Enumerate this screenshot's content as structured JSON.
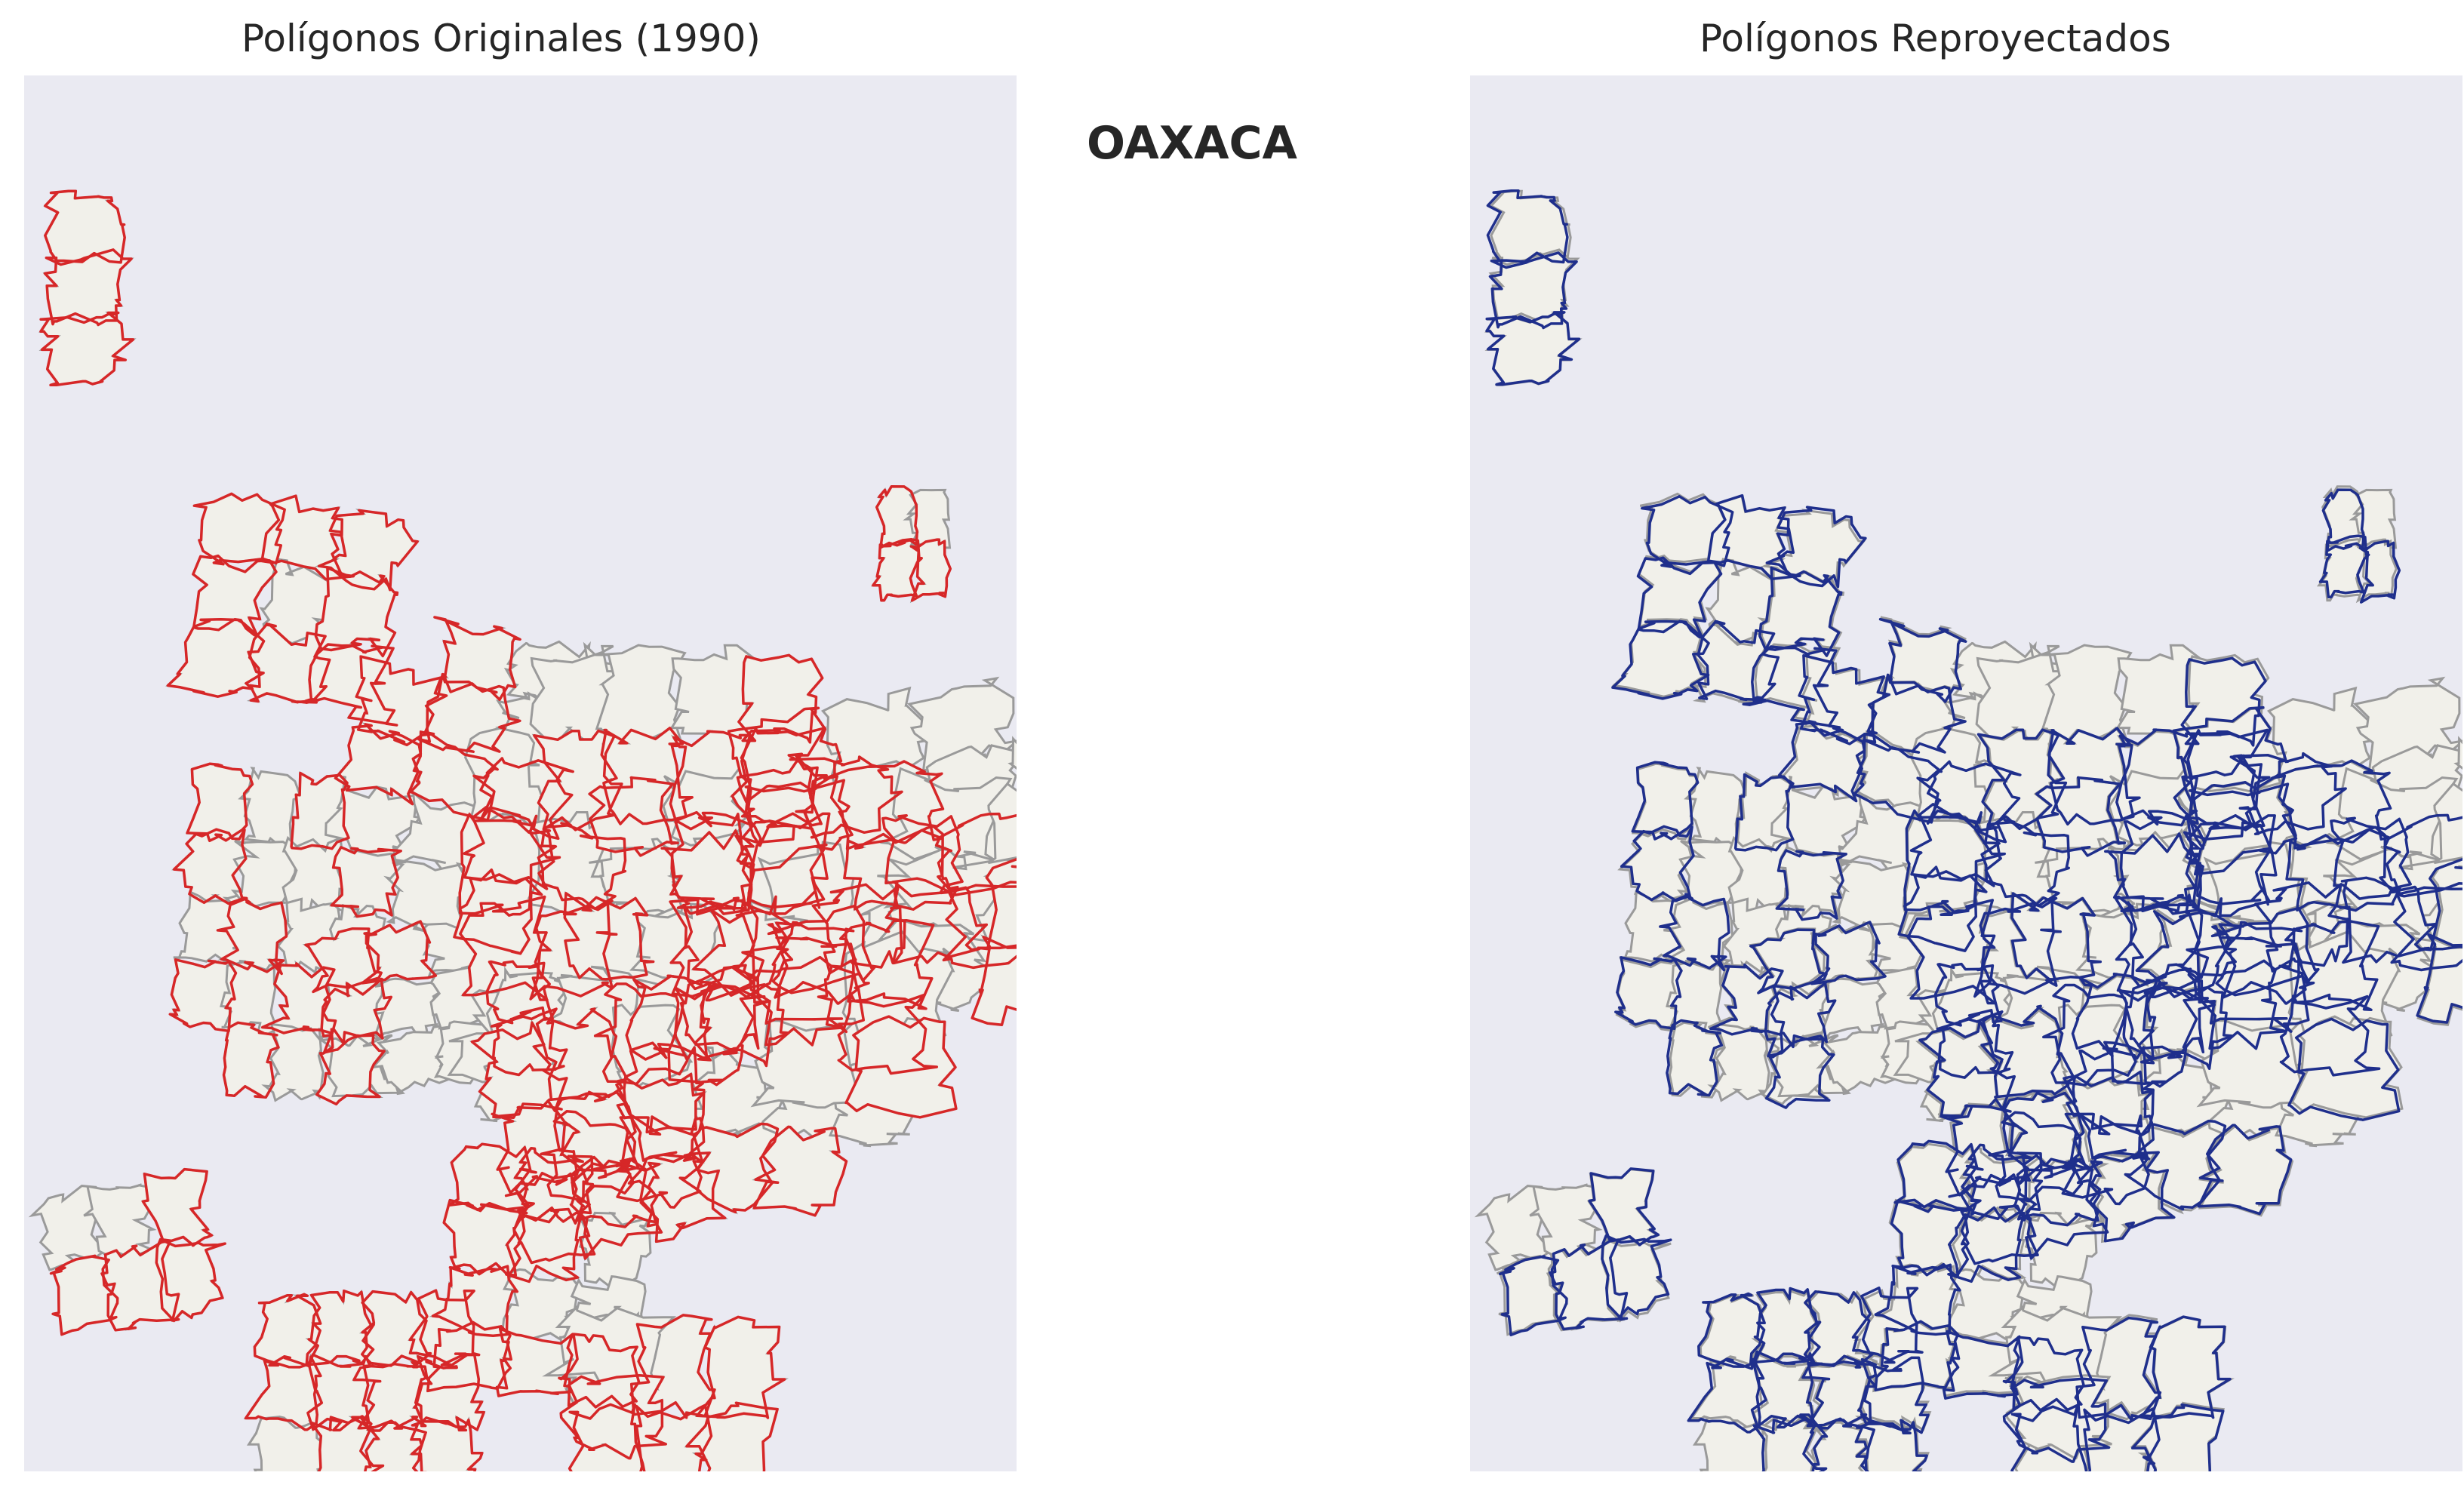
{
  "figure": {
    "main_title": "OAXACA"
  },
  "panels": [
    {
      "title": "Polígonos Originales (1990)",
      "outline_color": "#D62728"
    },
    {
      "title": "Polígonos Reproyectados",
      "outline_color": "#1F2F8C"
    }
  ],
  "style": {
    "panel_background": "#EAEAF2",
    "polygon_fill": "#F1F0EA",
    "polygon_edge": "#9A9A9A"
  }
}
